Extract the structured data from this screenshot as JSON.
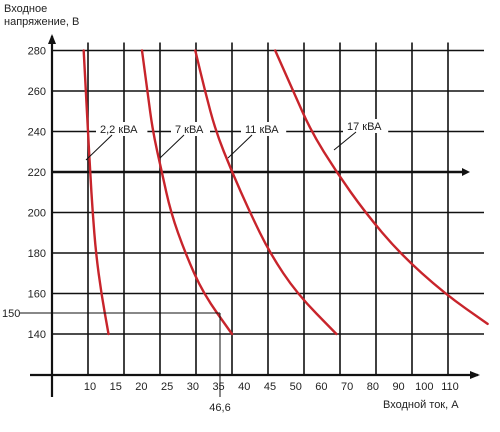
{
  "chart_data": {
    "type": "line",
    "ylabel": "Входное напряжение, В",
    "xlabel": "Входной ток, А",
    "xlim": [
      0,
      120
    ],
    "ylim": [
      120,
      290
    ],
    "x_ticks": [
      10,
      20,
      30,
      40,
      50,
      60,
      70,
      80,
      90,
      100,
      110
    ],
    "x_tick_labels": [
      "10",
      "15",
      "20",
      "25",
      "30",
      "35",
      "40",
      "45",
      "50",
      "60",
      "70",
      "80",
      "90",
      "100",
      "110"
    ],
    "x_tick_label_values": [
      10,
      15,
      20,
      25,
      30,
      35,
      40,
      45,
      50,
      60,
      70,
      80,
      90,
      100,
      110
    ],
    "y_ticks": [
      140,
      160,
      180,
      200,
      220,
      240,
      260,
      280
    ],
    "y_tick_labels": [
      "140",
      "160",
      "180",
      "200",
      "220",
      "240",
      "260",
      "280"
    ],
    "grid": true,
    "series": [
      {
        "name": "2,2 кВА",
        "color": "#c8242b",
        "points": [
          [
            8.8,
            280
          ],
          [
            9.4,
            260
          ],
          [
            10,
            240
          ],
          [
            10.6,
            220
          ],
          [
            11.3,
            200
          ],
          [
            12.2,
            180
          ],
          [
            13.7,
            160
          ],
          [
            15.7,
            140
          ]
        ]
      },
      {
        "name": "7 кВА",
        "color": "#c8242b",
        "points": [
          [
            25.0,
            280
          ],
          [
            26.5,
            260
          ],
          [
            28.0,
            240
          ],
          [
            30.5,
            220
          ],
          [
            33.0,
            200
          ],
          [
            37.0,
            180
          ],
          [
            42.0,
            160
          ],
          [
            50.0,
            140
          ]
        ]
      },
      {
        "name": "11 кВА",
        "color": "#c8242b",
        "points": [
          [
            39.8,
            280
          ],
          [
            42.5,
            260
          ],
          [
            45.5,
            240
          ],
          [
            50.0,
            220
          ],
          [
            55.0,
            200
          ],
          [
            60.5,
            180
          ],
          [
            68.0,
            160
          ],
          [
            79.0,
            140
          ]
        ]
      },
      {
        "name": "17 кВА",
        "color": "#c8242b",
        "points": [
          [
            62.0,
            280
          ],
          [
            67.0,
            260
          ],
          [
            72.0,
            240
          ],
          [
            79.0,
            220
          ],
          [
            87.0,
            200
          ],
          [
            96.5,
            180
          ],
          [
            109.0,
            160
          ],
          [
            121.0,
            145
          ]
        ]
      }
    ],
    "annotations": [
      {
        "text": "150",
        "value": 150
      },
      {
        "text": "46,6",
        "value": 46.6
      }
    ],
    "title": ""
  }
}
